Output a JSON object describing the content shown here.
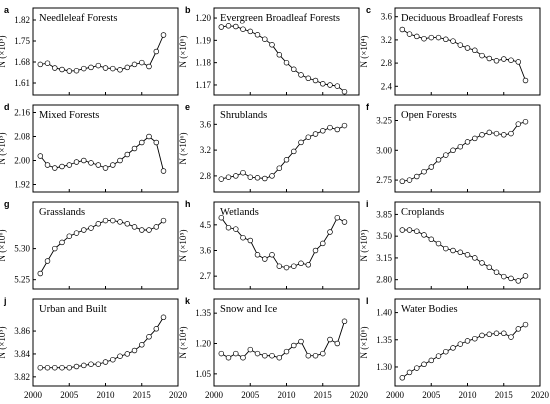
{
  "chart_data": [
    {
      "type": "line",
      "letter": "a",
      "title": "Needleleaf Forests",
      "ylabel": "N (×10⁵)",
      "yticks": [
        "1.82",
        "1.75",
        "1.68",
        "1.61"
      ],
      "ylim": [
        1.57,
        1.86
      ],
      "xlim": [
        2000,
        2020
      ],
      "x": [
        2001,
        2002,
        2003,
        2004,
        2005,
        2006,
        2007,
        2008,
        2009,
        2010,
        2011,
        2012,
        2013,
        2014,
        2015,
        2016,
        2017,
        2018
      ],
      "values": [
        1.672,
        1.676,
        1.66,
        1.655,
        1.65,
        1.651,
        1.658,
        1.662,
        1.668,
        1.66,
        1.658,
        1.654,
        1.662,
        1.672,
        1.678,
        1.665,
        1.715,
        1.77
      ]
    },
    {
      "type": "line",
      "letter": "b",
      "title": "Evergreen Broadleaf Forests",
      "ylabel": "N (×10⁶)",
      "yticks": [
        "1.20",
        "1.19",
        "1.18",
        "1.17"
      ],
      "ylim": [
        1.1655,
        1.2045
      ],
      "xlim": [
        2000,
        2020
      ],
      "x": [
        2001,
        2002,
        2003,
        2004,
        2005,
        2006,
        2007,
        2008,
        2009,
        2010,
        2011,
        2012,
        2013,
        2014,
        2015,
        2016,
        2017,
        2018
      ],
      "values": [
        1.196,
        1.1965,
        1.1962,
        1.195,
        1.194,
        1.1925,
        1.1905,
        1.188,
        1.1835,
        1.18,
        1.177,
        1.1745,
        1.173,
        1.172,
        1.1705,
        1.17,
        1.1695,
        1.167
      ]
    },
    {
      "type": "line",
      "letter": "c",
      "title": "Deciduous Broadleaf Forests",
      "ylabel": "N (×10⁴)",
      "yticks": [
        "3.6",
        "3.2",
        "2.8",
        "2.4"
      ],
      "ylim": [
        2.25,
        3.75
      ],
      "xlim": [
        2000,
        2020
      ],
      "x": [
        2001,
        2002,
        2003,
        2004,
        2005,
        2006,
        2007,
        2008,
        2009,
        2010,
        2011,
        2012,
        2013,
        2014,
        2015,
        2016,
        2017,
        2018
      ],
      "values": [
        3.38,
        3.3,
        3.26,
        3.22,
        3.24,
        3.24,
        3.21,
        3.18,
        3.11,
        3.06,
        3.02,
        2.93,
        2.88,
        2.84,
        2.87,
        2.85,
        2.82,
        2.5
      ]
    },
    {
      "type": "line",
      "letter": "d",
      "title": "Mixed Forests",
      "ylabel": "N (×10⁵)",
      "yticks": [
        "2.16",
        "2.08",
        "2.00",
        "1.92"
      ],
      "ylim": [
        1.895,
        2.185
      ],
      "xlim": [
        2000,
        2020
      ],
      "x": [
        2001,
        2002,
        2003,
        2004,
        2005,
        2006,
        2007,
        2008,
        2009,
        2010,
        2011,
        2012,
        2013,
        2014,
        2015,
        2016,
        2017,
        2018
      ],
      "values": [
        2.015,
        1.985,
        1.975,
        1.98,
        1.985,
        1.995,
        2.0,
        1.992,
        1.985,
        1.975,
        1.985,
        2.0,
        2.02,
        2.04,
        2.06,
        2.08,
        2.06,
        1.965
      ]
    },
    {
      "type": "line",
      "letter": "e",
      "title": "Shrublands",
      "ylabel": "N (×10⁶)",
      "yticks": [
        "3.6",
        "3.2",
        "2.8"
      ],
      "ylim": [
        2.55,
        3.9
      ],
      "xlim": [
        2000,
        2020
      ],
      "x": [
        2001,
        2002,
        2003,
        2004,
        2005,
        2006,
        2007,
        2008,
        2009,
        2010,
        2011,
        2012,
        2013,
        2014,
        2015,
        2016,
        2017,
        2018
      ],
      "values": [
        2.75,
        2.78,
        2.8,
        2.85,
        2.78,
        2.77,
        2.76,
        2.8,
        2.92,
        3.05,
        3.18,
        3.32,
        3.4,
        3.45,
        3.5,
        3.55,
        3.52,
        3.58
      ]
    },
    {
      "type": "line",
      "letter": "f",
      "title": "Open Forests",
      "ylabel": "",
      "yticks": [
        "3.25",
        "3.00",
        "2.75"
      ],
      "ylim": [
        2.65,
        3.38
      ],
      "xlim": [
        2000,
        2020
      ],
      "x": [
        2001,
        2002,
        2003,
        2004,
        2005,
        2006,
        2007,
        2008,
        2009,
        2010,
        2011,
        2012,
        2013,
        2014,
        2015,
        2016,
        2017,
        2018
      ],
      "values": [
        2.74,
        2.75,
        2.78,
        2.82,
        2.86,
        2.92,
        2.96,
        3.0,
        3.03,
        3.07,
        3.1,
        3.13,
        3.15,
        3.14,
        3.13,
        3.14,
        3.22,
        3.24
      ]
    },
    {
      "type": "line",
      "letter": "g",
      "title": "Grasslands",
      "ylabel": "N (×10⁶)",
      "yticks": [
        "5.30",
        "5.25"
      ],
      "ylim": [
        5.235,
        5.375
      ],
      "xlim": [
        2000,
        2020
      ],
      "x": [
        2001,
        2002,
        2003,
        2004,
        2005,
        2006,
        2007,
        2008,
        2009,
        2010,
        2011,
        2012,
        2013,
        2014,
        2015,
        2016,
        2017,
        2018
      ],
      "values": [
        5.26,
        5.28,
        5.3,
        5.31,
        5.32,
        5.325,
        5.33,
        5.333,
        5.34,
        5.345,
        5.345,
        5.343,
        5.34,
        5.335,
        5.33,
        5.33,
        5.335,
        5.345
      ]
    },
    {
      "type": "line",
      "letter": "h",
      "title": "Wetlands",
      "ylabel": "N (×10⁵)",
      "yticks": [
        "4.5",
        "3.6",
        "2.7"
      ],
      "ylim": [
        2.25,
        5.3
      ],
      "xlim": [
        2000,
        2020
      ],
      "x": [
        2001,
        2002,
        2003,
        2004,
        2005,
        2006,
        2007,
        2008,
        2009,
        2010,
        2011,
        2012,
        2013,
        2014,
        2015,
        2016,
        2017,
        2018
      ],
      "values": [
        4.75,
        4.4,
        4.35,
        4.05,
        3.95,
        3.45,
        3.3,
        3.45,
        3.05,
        3.0,
        3.05,
        3.15,
        3.1,
        3.6,
        3.85,
        4.25,
        4.75,
        4.6
      ]
    },
    {
      "type": "line",
      "letter": "i",
      "title": "Croplands",
      "ylabel": "N (×10⁵)",
      "yticks": [
        "3.85",
        "3.50",
        "3.15",
        "2.80"
      ],
      "ylim": [
        2.65,
        4.05
      ],
      "xlim": [
        2000,
        2020
      ],
      "x": [
        2001,
        2002,
        2003,
        2004,
        2005,
        2006,
        2007,
        2008,
        2009,
        2010,
        2011,
        2012,
        2013,
        2014,
        2015,
        2016,
        2017,
        2018
      ],
      "values": [
        3.6,
        3.6,
        3.58,
        3.52,
        3.45,
        3.38,
        3.3,
        3.27,
        3.24,
        3.2,
        3.15,
        3.07,
        3.0,
        2.92,
        2.85,
        2.82,
        2.78,
        2.86
      ]
    },
    {
      "type": "line",
      "letter": "j",
      "title": "Urban and Built",
      "ylabel": "N (×10⁵)",
      "yticks": [
        "3.86",
        "3.84",
        "3.82"
      ],
      "ylim": [
        3.812,
        3.888
      ],
      "xlim": [
        2000,
        2020
      ],
      "x": [
        2001,
        2002,
        2003,
        2004,
        2005,
        2006,
        2007,
        2008,
        2009,
        2010,
        2011,
        2012,
        2013,
        2014,
        2015,
        2016,
        2017,
        2018
      ],
      "values": [
        3.828,
        3.828,
        3.828,
        3.828,
        3.828,
        3.829,
        3.83,
        3.831,
        3.831,
        3.833,
        3.835,
        3.838,
        3.84,
        3.843,
        3.848,
        3.855,
        3.862,
        3.872
      ]
    },
    {
      "type": "line",
      "letter": "k",
      "title": "Snow and Ice",
      "ylabel": "N (×10⁴)",
      "yticks": [
        "1.35",
        "1.20",
        "1.05"
      ],
      "ylim": [
        0.99,
        1.42
      ],
      "xlim": [
        2000,
        2020
      ],
      "x": [
        2001,
        2002,
        2003,
        2004,
        2005,
        2006,
        2007,
        2008,
        2009,
        2010,
        2011,
        2012,
        2013,
        2014,
        2015,
        2016,
        2017,
        2018
      ],
      "values": [
        1.15,
        1.13,
        1.15,
        1.13,
        1.17,
        1.15,
        1.14,
        1.14,
        1.13,
        1.16,
        1.19,
        1.21,
        1.14,
        1.14,
        1.15,
        1.22,
        1.2,
        1.31
      ]
    },
    {
      "type": "line",
      "letter": "l",
      "title": "Water Bodies",
      "ylabel": "N (×10⁶)",
      "yticks": [
        "1.40",
        "1.35",
        "1.30"
      ],
      "ylim": [
        1.265,
        1.425
      ],
      "xlim": [
        2000,
        2020
      ],
      "x": [
        2001,
        2002,
        2003,
        2004,
        2005,
        2006,
        2007,
        2008,
        2009,
        2010,
        2011,
        2012,
        2013,
        2014,
        2015,
        2016,
        2017,
        2018
      ],
      "values": [
        1.28,
        1.29,
        1.298,
        1.305,
        1.312,
        1.32,
        1.328,
        1.335,
        1.342,
        1.348,
        1.352,
        1.358,
        1.36,
        1.362,
        1.362,
        1.355,
        1.37,
        1.378
      ]
    }
  ],
  "xticks": [
    "2000",
    "2005",
    "2010",
    "2015",
    "2020"
  ],
  "colors": {
    "line": "#000000",
    "marker_fill": "#ffffff",
    "axes": "#000000"
  }
}
